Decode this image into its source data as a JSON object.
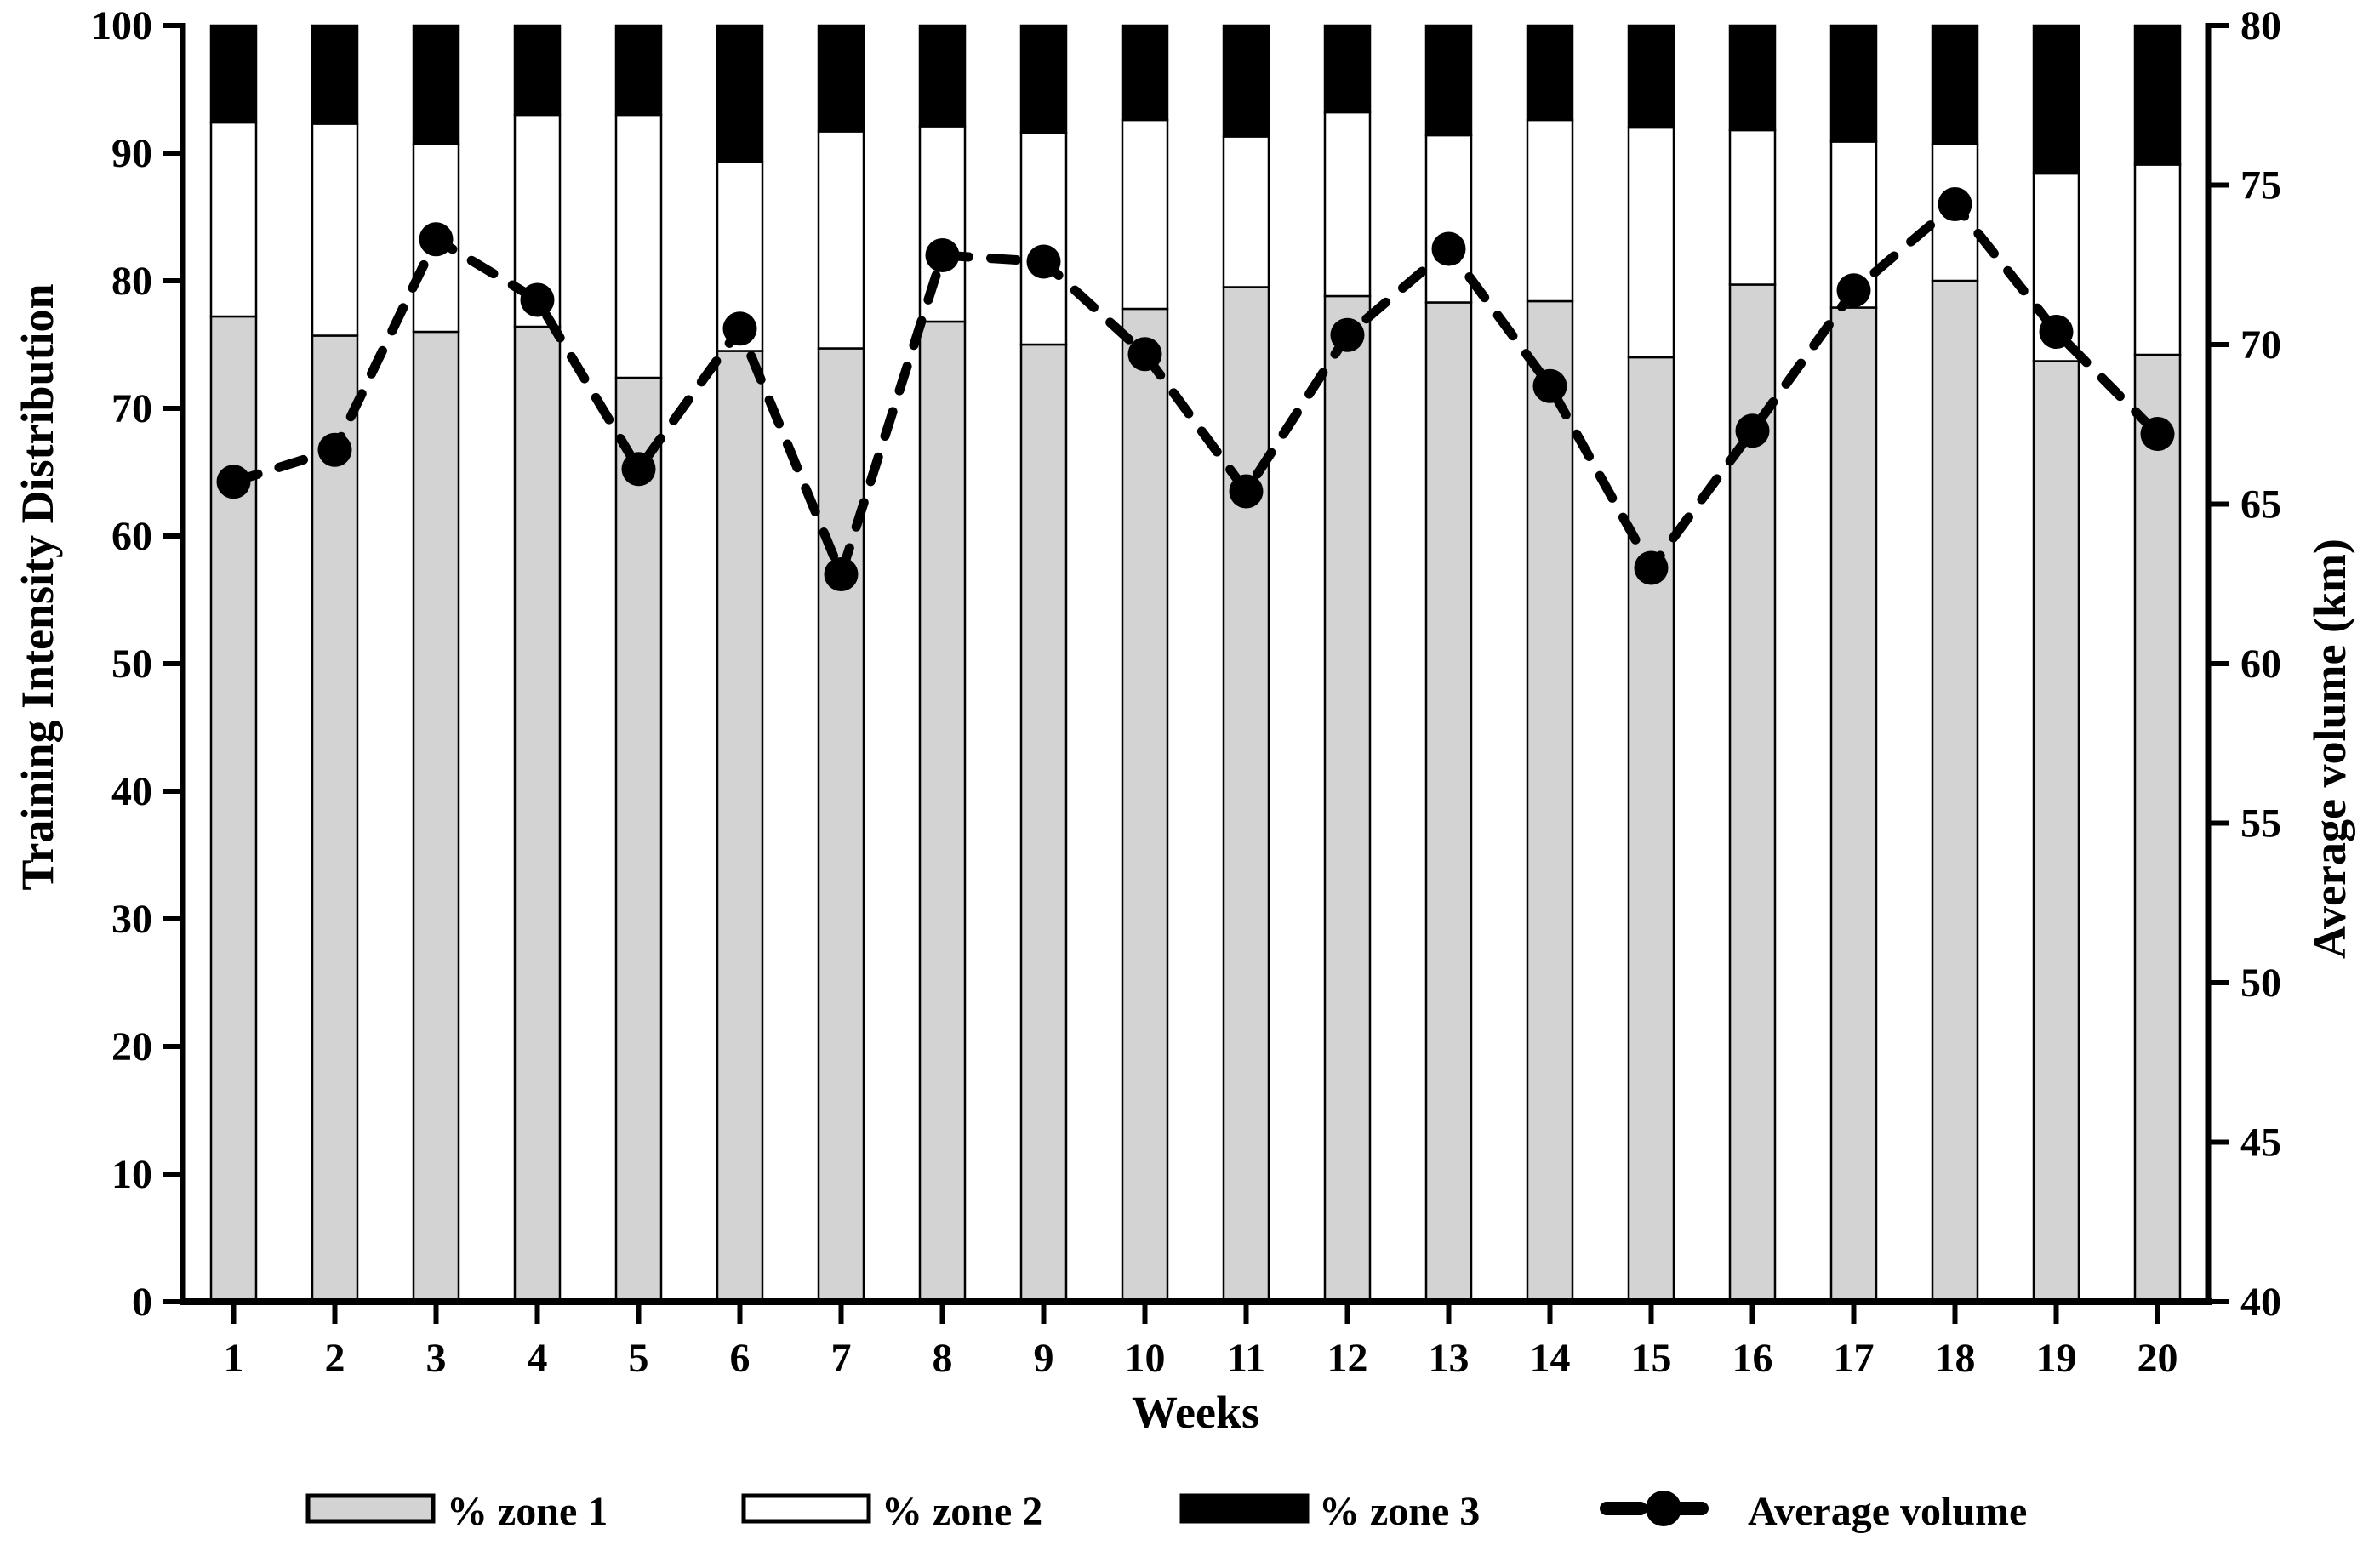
{
  "chart_data": {
    "type": "bar",
    "subtype": "stacked-bar-with-line-overlay",
    "title": "",
    "categories": [
      1,
      2,
      3,
      4,
      5,
      6,
      7,
      8,
      9,
      10,
      11,
      12,
      13,
      14,
      15,
      16,
      17,
      18,
      19,
      20
    ],
    "series": [
      {
        "name": "% zone 1",
        "type": "bar",
        "stack": true,
        "color": "#d3d3d3",
        "values": [
          77.2,
          75.7,
          76.0,
          76.4,
          72.4,
          74.5,
          74.7,
          76.8,
          75.0,
          77.8,
          79.5,
          78.8,
          78.3,
          78.4,
          74.0,
          79.7,
          77.9,
          80.0,
          73.7,
          74.2
        ]
      },
      {
        "name": "% zone 2",
        "type": "bar",
        "stack": true,
        "color": "#ffffff",
        "values": [
          15.2,
          16.6,
          14.7,
          16.6,
          20.6,
          14.8,
          17.0,
          15.3,
          16.6,
          14.8,
          11.8,
          14.4,
          13.1,
          14.2,
          18.0,
          12.1,
          13.0,
          10.7,
          14.7,
          14.9
        ]
      },
      {
        "name": "% zone 3",
        "type": "bar",
        "stack": true,
        "color": "#000000",
        "values": [
          7.6,
          7.7,
          9.3,
          7.0,
          7.0,
          10.7,
          8.3,
          7.9,
          8.4,
          7.4,
          8.7,
          6.8,
          8.6,
          7.4,
          8.0,
          8.2,
          9.1,
          9.3,
          11.6,
          10.9
        ]
      },
      {
        "name": "Average volume",
        "type": "line",
        "axis": "right",
        "color": "#000000",
        "style": "dashed-with-dots",
        "values": [
          65.7,
          66.7,
          73.3,
          71.4,
          66.1,
          70.5,
          62.8,
          72.8,
          72.6,
          69.7,
          65.4,
          70.3,
          73.0,
          68.7,
          63.0,
          67.3,
          71.7,
          74.4,
          70.4,
          67.2
        ]
      }
    ],
    "left_axis": {
      "label": "Training Intensity Distribution",
      "min": 0,
      "max": 100,
      "step": 10,
      "ticks": [
        0,
        10,
        20,
        30,
        40,
        50,
        60,
        70,
        80,
        90,
        100
      ]
    },
    "right_axis": {
      "label": "Average volume (km)",
      "min": 40,
      "max": 80,
      "step": 5,
      "ticks": [
        40,
        45,
        50,
        55,
        60,
        65,
        70,
        75,
        80
      ]
    },
    "x_axis": {
      "label": "Weeks",
      "tick_labels": [
        "1",
        "2",
        "3",
        "4",
        "5",
        "6",
        "7",
        "8",
        "9",
        "10",
        "11",
        "12",
        "13",
        "14",
        "15",
        "16",
        "17",
        "18",
        "19",
        "20"
      ]
    },
    "legend": {
      "position": "bottom",
      "entries": [
        {
          "label": "% zone 1",
          "swatch": "gray-filled-rect"
        },
        {
          "label": "% zone 2",
          "swatch": "white-filled-rect"
        },
        {
          "label": "% zone 3",
          "swatch": "black-filled-rect"
        },
        {
          "label": "Average volume",
          "swatch": "dashed-line-with-dot"
        }
      ]
    },
    "grid": false,
    "colors": {
      "zone1_fill": "#d3d3d3",
      "zone2_fill": "#ffffff",
      "zone3_fill": "#000000",
      "line": "#000000",
      "axis": "#000000",
      "background": "#ffffff"
    }
  }
}
